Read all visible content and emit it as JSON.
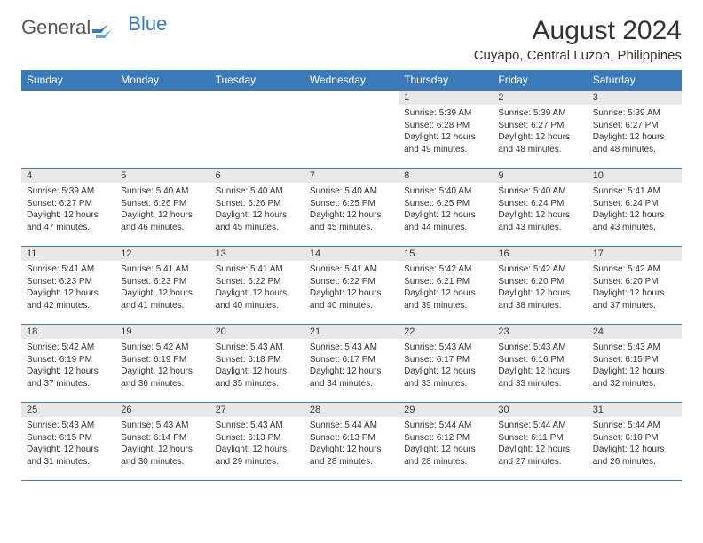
{
  "brand": {
    "text1": "General",
    "text2": "Blue",
    "color1": "#555555",
    "color2": "#3a7ab8"
  },
  "title": "August 2024",
  "location": "Cuyapo, Central Luzon, Philippines",
  "theme": {
    "header_bg": "#3a7ab8",
    "header_fg": "#ffffff",
    "daynum_bg": "#e8e8e8",
    "border": "#3a7ab8",
    "text": "#333333",
    "title_fontsize": 30,
    "location_fontsize": 15,
    "th_fontsize": 12,
    "cell_fontsize": 10
  },
  "weekdays": [
    "Sunday",
    "Monday",
    "Tuesday",
    "Wednesday",
    "Thursday",
    "Friday",
    "Saturday"
  ],
  "weeks": [
    [
      null,
      null,
      null,
      null,
      {
        "d": "1",
        "sr": "5:39 AM",
        "ss": "6:28 PM",
        "dl": "12 hours and 49 minutes."
      },
      {
        "d": "2",
        "sr": "5:39 AM",
        "ss": "6:27 PM",
        "dl": "12 hours and 48 minutes."
      },
      {
        "d": "3",
        "sr": "5:39 AM",
        "ss": "6:27 PM",
        "dl": "12 hours and 48 minutes."
      }
    ],
    [
      {
        "d": "4",
        "sr": "5:39 AM",
        "ss": "6:27 PM",
        "dl": "12 hours and 47 minutes."
      },
      {
        "d": "5",
        "sr": "5:40 AM",
        "ss": "6:26 PM",
        "dl": "12 hours and 46 minutes."
      },
      {
        "d": "6",
        "sr": "5:40 AM",
        "ss": "6:26 PM",
        "dl": "12 hours and 45 minutes."
      },
      {
        "d": "7",
        "sr": "5:40 AM",
        "ss": "6:25 PM",
        "dl": "12 hours and 45 minutes."
      },
      {
        "d": "8",
        "sr": "5:40 AM",
        "ss": "6:25 PM",
        "dl": "12 hours and 44 minutes."
      },
      {
        "d": "9",
        "sr": "5:40 AM",
        "ss": "6:24 PM",
        "dl": "12 hours and 43 minutes."
      },
      {
        "d": "10",
        "sr": "5:41 AM",
        "ss": "6:24 PM",
        "dl": "12 hours and 43 minutes."
      }
    ],
    [
      {
        "d": "11",
        "sr": "5:41 AM",
        "ss": "6:23 PM",
        "dl": "12 hours and 42 minutes."
      },
      {
        "d": "12",
        "sr": "5:41 AM",
        "ss": "6:23 PM",
        "dl": "12 hours and 41 minutes."
      },
      {
        "d": "13",
        "sr": "5:41 AM",
        "ss": "6:22 PM",
        "dl": "12 hours and 40 minutes."
      },
      {
        "d": "14",
        "sr": "5:41 AM",
        "ss": "6:22 PM",
        "dl": "12 hours and 40 minutes."
      },
      {
        "d": "15",
        "sr": "5:42 AM",
        "ss": "6:21 PM",
        "dl": "12 hours and 39 minutes."
      },
      {
        "d": "16",
        "sr": "5:42 AM",
        "ss": "6:20 PM",
        "dl": "12 hours and 38 minutes."
      },
      {
        "d": "17",
        "sr": "5:42 AM",
        "ss": "6:20 PM",
        "dl": "12 hours and 37 minutes."
      }
    ],
    [
      {
        "d": "18",
        "sr": "5:42 AM",
        "ss": "6:19 PM",
        "dl": "12 hours and 37 minutes."
      },
      {
        "d": "19",
        "sr": "5:42 AM",
        "ss": "6:19 PM",
        "dl": "12 hours and 36 minutes."
      },
      {
        "d": "20",
        "sr": "5:43 AM",
        "ss": "6:18 PM",
        "dl": "12 hours and 35 minutes."
      },
      {
        "d": "21",
        "sr": "5:43 AM",
        "ss": "6:17 PM",
        "dl": "12 hours and 34 minutes."
      },
      {
        "d": "22",
        "sr": "5:43 AM",
        "ss": "6:17 PM",
        "dl": "12 hours and 33 minutes."
      },
      {
        "d": "23",
        "sr": "5:43 AM",
        "ss": "6:16 PM",
        "dl": "12 hours and 33 minutes."
      },
      {
        "d": "24",
        "sr": "5:43 AM",
        "ss": "6:15 PM",
        "dl": "12 hours and 32 minutes."
      }
    ],
    [
      {
        "d": "25",
        "sr": "5:43 AM",
        "ss": "6:15 PM",
        "dl": "12 hours and 31 minutes."
      },
      {
        "d": "26",
        "sr": "5:43 AM",
        "ss": "6:14 PM",
        "dl": "12 hours and 30 minutes."
      },
      {
        "d": "27",
        "sr": "5:43 AM",
        "ss": "6:13 PM",
        "dl": "12 hours and 29 minutes."
      },
      {
        "d": "28",
        "sr": "5:44 AM",
        "ss": "6:13 PM",
        "dl": "12 hours and 28 minutes."
      },
      {
        "d": "29",
        "sr": "5:44 AM",
        "ss": "6:12 PM",
        "dl": "12 hours and 28 minutes."
      },
      {
        "d": "30",
        "sr": "5:44 AM",
        "ss": "6:11 PM",
        "dl": "12 hours and 27 minutes."
      },
      {
        "d": "31",
        "sr": "5:44 AM",
        "ss": "6:10 PM",
        "dl": "12 hours and 26 minutes."
      }
    ]
  ],
  "labels": {
    "sunrise": "Sunrise:",
    "sunset": "Sunset:",
    "daylight": "Daylight:"
  }
}
